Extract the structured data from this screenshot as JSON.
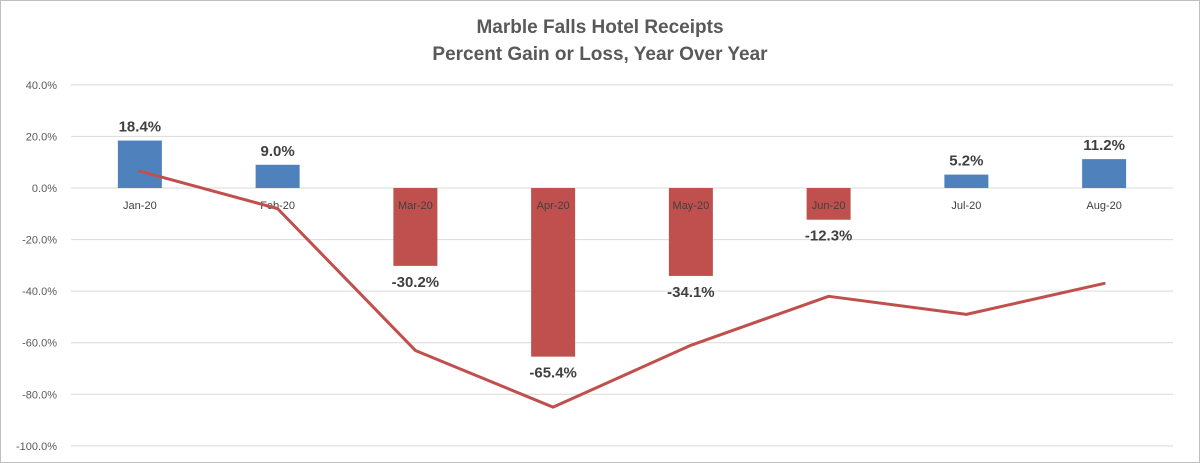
{
  "chart_data": {
    "type": "bar",
    "title": "Marble Falls Hotel Receipts",
    "subtitle": "Percent Gain or Loss, Year Over Year",
    "categories": [
      "Jan-20",
      "Feb-20",
      "Mar-20",
      "Apr-20",
      "May-20",
      "Jun-20",
      "Jul-20",
      "Aug-20"
    ],
    "series": [
      {
        "type": "bar",
        "values": [
          18.4,
          9.0,
          -30.2,
          -65.4,
          -34.1,
          -12.3,
          5.2,
          11.2
        ],
        "data_labels": [
          "18.4%",
          "9.0%",
          "-30.2%",
          "-65.4%",
          "-34.1%",
          "-12.3%",
          "5.2%",
          "11.2%"
        ],
        "positive_color": "#4f81bd",
        "negative_color": "#c0504d"
      },
      {
        "type": "line",
        "values": [
          6.5,
          -8.0,
          -63.0,
          -85.0,
          -61.0,
          -42.0,
          -49.0,
          -37.0
        ],
        "color": "#c0504d"
      }
    ],
    "ylim": [
      -100,
      40
    ],
    "y_ticks": [
      "40.0%",
      "20.0%",
      "0.0%",
      "-20.0%",
      "-40.0%",
      "-60.0%",
      "-80.0%",
      "-100.0%"
    ],
    "grid": true,
    "legend": "none"
  }
}
